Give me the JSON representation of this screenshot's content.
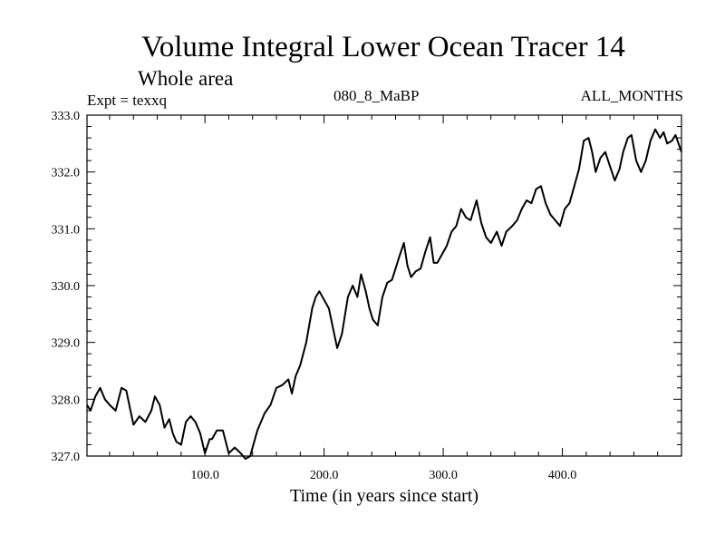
{
  "header": {
    "title": "Volume Integral Lower Ocean Tracer 14",
    "subtitle": "Whole area",
    "experiment": "Expt = texxq",
    "run": "080_8_MaBP",
    "months": "ALL_MONTHS"
  },
  "chart_data": {
    "type": "line",
    "title": "Volume Integral Lower Ocean Tracer 14",
    "subtitle": "Whole area",
    "xlabel": "Time (in years since start)",
    "ylabel": "",
    "xlim": [
      1,
      500
    ],
    "ylim": [
      327.0,
      333.0
    ],
    "xticks": [
      100,
      200,
      300,
      400
    ],
    "xtick_labels": [
      "100.0",
      "200.0",
      "300.0",
      "400.0"
    ],
    "yticks": [
      327,
      328,
      329,
      330,
      331,
      332,
      333
    ],
    "ytick_labels": [
      "327.0",
      "328.0",
      "329.0",
      "330.0",
      "331.0",
      "332.0",
      "333.0"
    ],
    "grid": false,
    "series": [
      {
        "name": "Lower Ocean Tracer 14",
        "x": [
          1,
          4,
          8,
          12,
          16,
          20,
          25,
          30,
          34,
          37,
          40,
          45,
          50,
          55,
          58,
          62,
          66,
          70,
          73,
          76,
          80,
          84,
          88,
          92,
          96,
          100,
          104,
          106,
          110,
          115,
          120,
          125,
          130,
          134,
          138,
          140,
          144,
          150,
          155,
          160,
          165,
          170,
          173,
          176,
          180,
          185,
          190,
          193,
          196,
          200,
          204,
          208,
          211,
          215,
          220,
          224,
          228,
          231,
          235,
          238,
          241,
          245,
          249,
          253,
          257,
          260,
          263,
          267,
          270,
          273,
          277,
          281,
          285,
          289,
          292,
          295,
          299,
          303,
          307,
          311,
          315,
          319,
          323,
          328,
          332,
          336,
          340,
          345,
          349,
          353,
          358,
          362,
          366,
          370,
          374,
          378,
          382,
          386,
          390,
          394,
          398,
          402,
          406,
          410,
          414,
          418,
          422,
          425,
          428,
          432,
          436,
          440,
          444,
          448,
          451,
          455,
          458,
          462,
          466,
          470,
          474,
          478,
          482,
          485,
          488,
          492,
          495,
          500
        ],
        "values": [
          327.9,
          327.8,
          328.05,
          328.2,
          328.0,
          327.9,
          327.8,
          328.2,
          328.15,
          327.85,
          327.55,
          327.7,
          327.6,
          327.8,
          328.05,
          327.9,
          327.5,
          327.65,
          327.4,
          327.25,
          327.2,
          327.6,
          327.7,
          327.6,
          327.4,
          327.05,
          327.3,
          327.3,
          327.45,
          327.45,
          327.05,
          327.15,
          327.05,
          326.95,
          327.0,
          327.15,
          327.45,
          327.75,
          327.9,
          328.2,
          328.25,
          328.35,
          328.1,
          328.4,
          328.6,
          329.0,
          329.6,
          329.8,
          329.9,
          329.75,
          329.6,
          329.2,
          328.9,
          329.15,
          329.8,
          330.0,
          329.8,
          330.2,
          329.9,
          329.6,
          329.4,
          329.3,
          329.8,
          330.05,
          330.1,
          330.3,
          330.5,
          330.75,
          330.35,
          330.15,
          330.25,
          330.3,
          330.6,
          330.85,
          330.4,
          330.4,
          330.55,
          330.7,
          330.95,
          331.05,
          331.35,
          331.2,
          331.15,
          331.5,
          331.1,
          330.85,
          330.75,
          330.95,
          330.7,
          330.95,
          331.05,
          331.15,
          331.35,
          331.5,
          331.45,
          331.7,
          331.75,
          331.45,
          331.25,
          331.15,
          331.05,
          331.35,
          331.45,
          331.75,
          332.05,
          332.55,
          332.6,
          332.35,
          332.0,
          332.25,
          332.35,
          332.1,
          331.85,
          332.05,
          332.35,
          332.6,
          332.65,
          332.2,
          332.0,
          332.2,
          332.55,
          332.75,
          332.6,
          332.7,
          332.5,
          332.55,
          332.65,
          332.35
        ]
      }
    ]
  }
}
